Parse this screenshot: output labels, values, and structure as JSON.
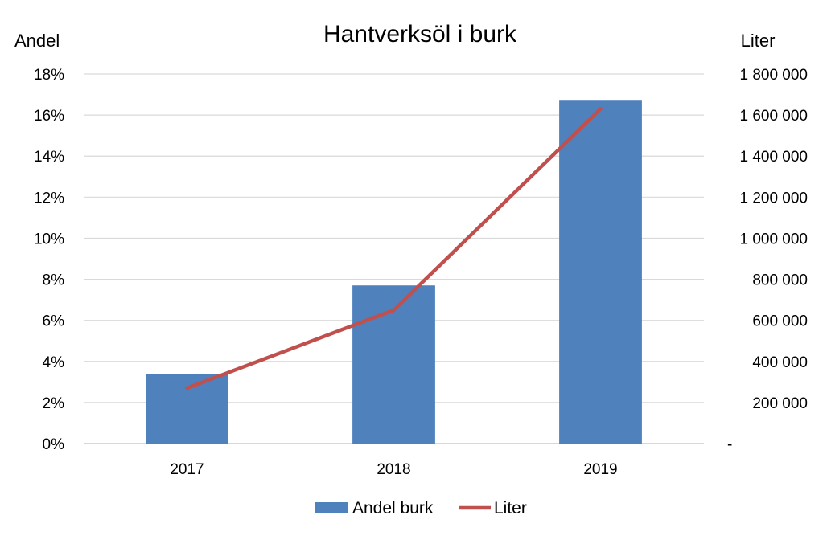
{
  "chart_data": {
    "type": "bar",
    "title": "Hantverksöl i burk",
    "categories": [
      "2017",
      "2018",
      "2019"
    ],
    "y_left": {
      "label": "Andel",
      "ylim": [
        0,
        0.18
      ],
      "ticks": [
        0,
        0.02,
        0.04,
        0.06,
        0.08,
        0.1,
        0.12,
        0.14,
        0.16,
        0.18
      ],
      "tick_labels": [
        "0%",
        "2%",
        "4%",
        "6%",
        "8%",
        "10%",
        "12%",
        "14%",
        "16%",
        "18%"
      ]
    },
    "y_right": {
      "label": "Liter",
      "ylim": [
        0,
        1800000
      ],
      "ticks": [
        0,
        200000,
        400000,
        600000,
        800000,
        1000000,
        1200000,
        1400000,
        1600000,
        1800000
      ],
      "tick_labels": [
        "-",
        "200 000",
        "400 000",
        "600 000",
        "800 000",
        "1 000 000",
        "1 200 000",
        "1 400 000",
        "1 600 000",
        "1 800 000"
      ]
    },
    "series": [
      {
        "name": "Andel burk",
        "type": "bar",
        "axis": "left",
        "color": "#4F81BD",
        "values": [
          0.034,
          0.077,
          0.167
        ]
      },
      {
        "name": "Liter",
        "type": "line",
        "axis": "right",
        "color": "#C0504D",
        "values": [
          270000,
          650000,
          1630000
        ]
      }
    ],
    "grid": true,
    "legend_position": "bottom"
  }
}
